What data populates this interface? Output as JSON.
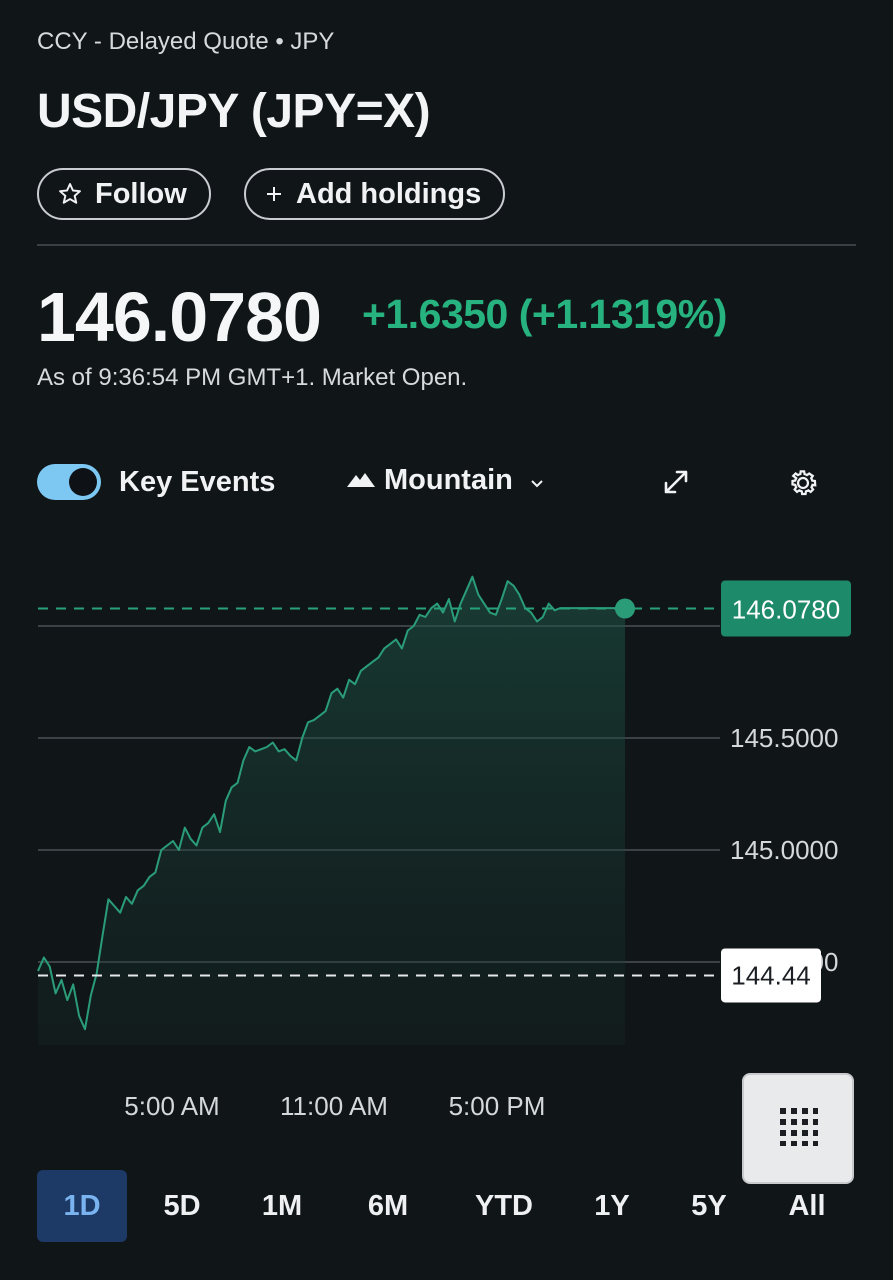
{
  "header": {
    "subtitle": "CCY - Delayed Quote • JPY",
    "title": "USD/JPY (JPY=X)",
    "follow_label": "Follow",
    "add_holdings_label": "Add holdings"
  },
  "quote": {
    "price": "146.0780",
    "change": "+1.6350 (+1.1319%)",
    "as_of": "As of 9:36:54 PM GMT+1. Market Open."
  },
  "controls": {
    "key_events_label": "Key Events",
    "key_events_on": true,
    "chart_type_label": "Mountain"
  },
  "colors": {
    "up": "#27b37f",
    "line": "#2a9d78",
    "background": "#101518",
    "active_range": "#1d3a66"
  },
  "chart_data": {
    "type": "area",
    "x_tick_labels": [
      "5:00 AM",
      "11:00 AM",
      "5:00 PM"
    ],
    "y_tick_labels": [
      "146.0000",
      "145.5000",
      "145.0000",
      "144.5000"
    ],
    "ylim": [
      144.1,
      146.3
    ],
    "current_price": 146.078,
    "current_price_label": "146.0780",
    "previous_close": 144.44,
    "previous_close_label": "144.44",
    "grid": true,
    "series": [
      {
        "x": [
          0,
          0.01,
          0.02,
          0.03,
          0.04,
          0.05,
          0.06,
          0.07,
          0.08,
          0.09,
          0.1,
          0.11,
          0.12,
          0.13,
          0.14,
          0.15,
          0.16,
          0.17,
          0.18,
          0.19,
          0.2,
          0.21,
          0.22,
          0.23,
          0.24,
          0.25,
          0.26,
          0.27,
          0.28,
          0.29,
          0.3,
          0.31,
          0.32,
          0.33,
          0.34,
          0.35,
          0.36,
          0.37,
          0.38,
          0.39,
          0.4,
          0.41,
          0.42,
          0.43,
          0.44,
          0.45,
          0.46,
          0.47,
          0.48,
          0.49,
          0.5,
          0.51,
          0.52,
          0.53,
          0.54,
          0.55,
          0.56,
          0.57,
          0.58,
          0.59,
          0.6,
          0.61,
          0.62,
          0.63,
          0.64,
          0.65,
          0.66,
          0.67,
          0.68,
          0.69,
          0.7,
          0.71,
          0.72,
          0.73,
          0.74,
          0.75,
          0.76,
          0.77,
          0.78,
          0.79,
          0.8,
          0.81,
          0.82,
          0.83,
          0.84,
          0.85,
          0.86,
          0.87,
          0.88,
          0.89,
          0.9,
          0.91,
          0.92,
          0.93,
          0.94,
          0.95,
          0.96,
          0.97,
          0.98,
          0.99,
          1.0
        ],
        "values": [
          144.46,
          144.52,
          144.48,
          144.36,
          144.42,
          144.33,
          144.4,
          144.26,
          144.2,
          144.35,
          144.45,
          144.62,
          144.78,
          144.75,
          144.72,
          144.79,
          144.76,
          144.82,
          144.84,
          144.88,
          144.9,
          145.0,
          145.02,
          145.04,
          145.0,
          145.1,
          145.05,
          145.02,
          145.1,
          145.12,
          145.16,
          145.08,
          145.22,
          145.28,
          145.3,
          145.4,
          145.46,
          145.44,
          145.45,
          145.46,
          145.48,
          145.44,
          145.45,
          145.42,
          145.4,
          145.5,
          145.57,
          145.58,
          145.6,
          145.62,
          145.7,
          145.72,
          145.68,
          145.76,
          145.74,
          145.8,
          145.82,
          145.84,
          145.86,
          145.9,
          145.92,
          145.94,
          145.9,
          145.98,
          146.0,
          146.05,
          146.04,
          146.08,
          146.1,
          146.06,
          146.12,
          146.02,
          146.1,
          146.16,
          146.22,
          146.14,
          146.1,
          146.06,
          146.05,
          146.12,
          146.2,
          146.18,
          146.14,
          146.08,
          146.06,
          146.02,
          146.04,
          146.1,
          146.07,
          146.08,
          146.08,
          146.08,
          146.08,
          146.08,
          146.08,
          146.08,
          146.08,
          146.08,
          146.08,
          146.08,
          146.078
        ]
      }
    ]
  },
  "ranges": {
    "items": [
      "1D",
      "5D",
      "1M",
      "6M",
      "YTD",
      "1Y",
      "5Y",
      "All"
    ],
    "active": "1D"
  }
}
